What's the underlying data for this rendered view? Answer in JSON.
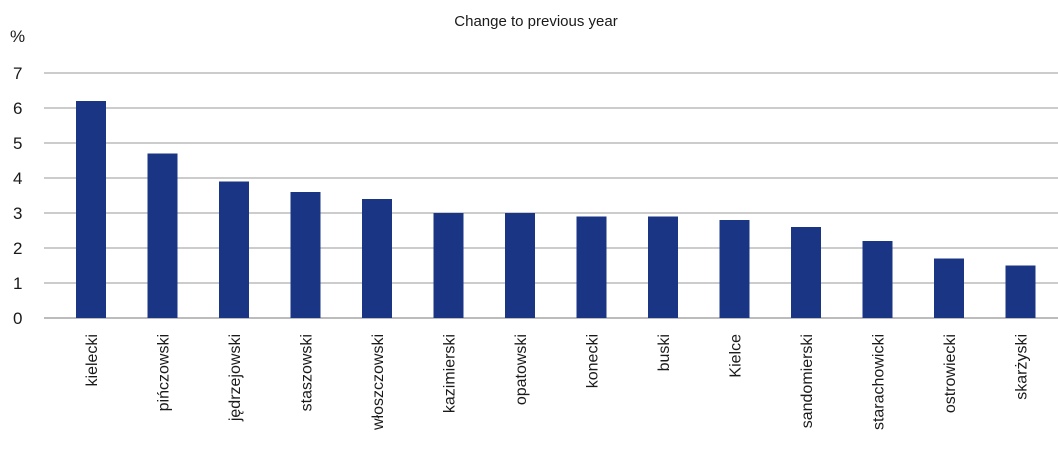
{
  "chart_data": {
    "type": "bar",
    "title": "Change to previous year",
    "ylabel": "%",
    "xlabel": "",
    "ylim": [
      0,
      7
    ],
    "yticks": [
      0,
      1,
      2,
      3,
      4,
      5,
      6,
      7
    ],
    "grid": true,
    "categories": [
      "kielecki",
      "pińczowski",
      "jędrzejowski",
      "staszowski",
      "włoszczowski",
      "kazimierski",
      "opatowski",
      "konecki",
      "buski",
      "Kielce",
      "sandomierski",
      "starachowicki",
      "ostrowiecki",
      "skarżyski"
    ],
    "values": [
      6.2,
      4.7,
      3.9,
      3.6,
      3.4,
      3.0,
      3.0,
      2.9,
      2.9,
      2.8,
      2.6,
      2.2,
      1.7,
      1.5
    ],
    "bar_color": "#1b3585",
    "grid_color": "#9a9a9a"
  }
}
